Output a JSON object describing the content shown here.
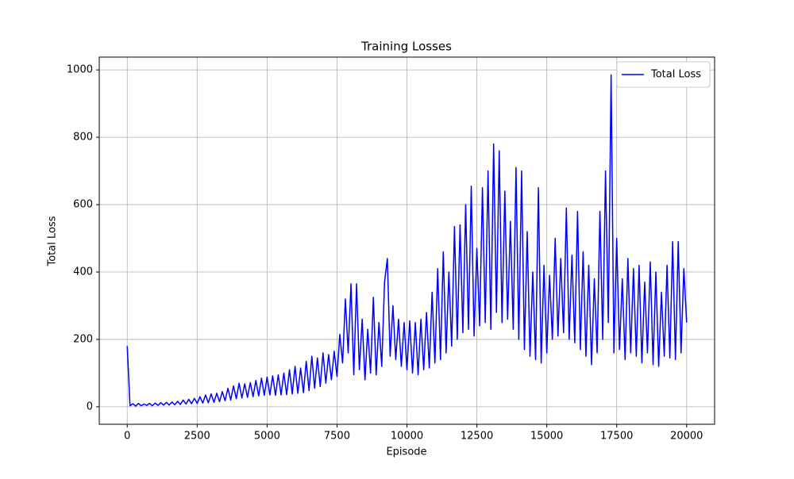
{
  "chart_data": {
    "type": "line",
    "title": "Training Losses",
    "xlabel": "Episode",
    "ylabel": "Total Loss",
    "xlim": [
      -1000,
      21000
    ],
    "ylim": [
      -52,
      1038
    ],
    "xticks": [
      0,
      2500,
      5000,
      7500,
      10000,
      12500,
      15000,
      17500,
      20000
    ],
    "yticks": [
      0,
      200,
      400,
      600,
      800,
      1000
    ],
    "grid": true,
    "legend": "upper right",
    "x": [
      0,
      100,
      200,
      300,
      400,
      500,
      600,
      700,
      800,
      900,
      1000,
      1100,
      1200,
      1300,
      1400,
      1500,
      1600,
      1700,
      1800,
      1900,
      2000,
      2100,
      2200,
      2300,
      2400,
      2500,
      2600,
      2700,
      2800,
      2900,
      3000,
      3100,
      3200,
      3300,
      3400,
      3500,
      3600,
      3700,
      3800,
      3900,
      4000,
      4100,
      4200,
      4300,
      4400,
      4500,
      4600,
      4700,
      4800,
      4900,
      5000,
      5100,
      5200,
      5300,
      5400,
      5500,
      5600,
      5700,
      5800,
      5900,
      6000,
      6100,
      6200,
      6300,
      6400,
      6500,
      6600,
      6700,
      6800,
      6900,
      7000,
      7100,
      7200,
      7300,
      7400,
      7500,
      7600,
      7700,
      7800,
      7900,
      8000,
      8100,
      8200,
      8300,
      8400,
      8500,
      8600,
      8700,
      8800,
      8900,
      9000,
      9100,
      9200,
      9300,
      9400,
      9500,
      9600,
      9700,
      9800,
      9900,
      10000,
      10100,
      10200,
      10300,
      10400,
      10500,
      10600,
      10700,
      10800,
      10900,
      11000,
      11100,
      11200,
      11300,
      11400,
      11500,
      11600,
      11700,
      11800,
      11900,
      12000,
      12100,
      12200,
      12300,
      12400,
      12500,
      12600,
      12700,
      12800,
      12900,
      13000,
      13100,
      13200,
      13300,
      13400,
      13500,
      13600,
      13700,
      13800,
      13900,
      14000,
      14100,
      14200,
      14300,
      14400,
      14500,
      14600,
      14700,
      14800,
      14900,
      15000,
      15100,
      15200,
      15300,
      15400,
      15500,
      15600,
      15700,
      15800,
      15900,
      16000,
      16100,
      16200,
      16300,
      16400,
      16500,
      16600,
      16700,
      16800,
      16900,
      17000,
      17100,
      17200,
      17300,
      17400,
      17500,
      17600,
      17700,
      17800,
      17900,
      18000,
      18100,
      18200,
      18300,
      18400,
      18500,
      18600,
      18700,
      18800,
      18900,
      19000,
      19100,
      19200,
      19300,
      19400,
      19500,
      19600,
      19700,
      19800,
      19900,
      20000
    ],
    "series": [
      {
        "name": "Total Loss",
        "color": "#0000ff",
        "values": [
          180,
          3,
          9,
          2,
          10,
          3,
          8,
          4,
          10,
          3,
          11,
          4,
          12,
          5,
          13,
          5,
          14,
          6,
          16,
          7,
          20,
          8,
          22,
          9,
          25,
          10,
          30,
          11,
          35,
          12,
          38,
          13,
          40,
          15,
          45,
          18,
          55,
          20,
          62,
          24,
          70,
          26,
          68,
          28,
          72,
          30,
          78,
          32,
          85,
          34,
          88,
          35,
          92,
          34,
          95,
          35,
          100,
          36,
          110,
          38,
          120,
          40,
          115,
          42,
          135,
          48,
          150,
          55,
          145,
          60,
          160,
          70,
          155,
          80,
          165,
          90,
          215,
          130,
          320,
          160,
          365,
          95,
          365,
          110,
          260,
          80,
          230,
          100,
          325,
          95,
          250,
          120,
          370,
          440,
          150,
          300,
          140,
          260,
          120,
          250,
          110,
          255,
          100,
          250,
          95,
          260,
          110,
          280,
          115,
          340,
          130,
          410,
          140,
          460,
          160,
          400,
          180,
          535,
          200,
          540,
          220,
          600,
          230,
          655,
          210,
          470,
          240,
          650,
          250,
          700,
          230,
          780,
          280,
          760,
          250,
          640,
          260,
          550,
          230,
          710,
          200,
          700,
          170,
          520,
          150,
          400,
          140,
          650,
          130,
          420,
          160,
          390,
          200,
          500,
          210,
          440,
          220,
          590,
          200,
          450,
          190,
          580,
          170,
          460,
          150,
          420,
          125,
          380,
          160,
          580,
          200,
          700,
          250,
          985,
          160,
          500,
          170,
          380,
          140,
          440,
          160,
          410,
          150,
          420,
          130,
          370,
          160,
          430,
          125,
          400,
          120,
          340,
          150,
          420,
          145,
          490,
          140,
          490,
          160,
          410,
          250
        ]
      }
    ]
  }
}
